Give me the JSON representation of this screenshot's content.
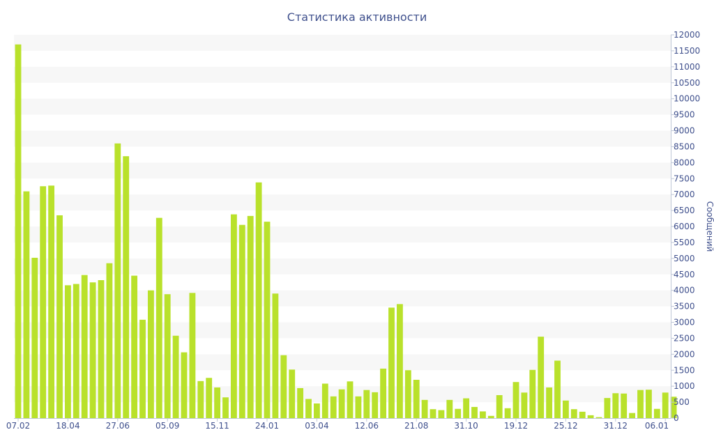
{
  "chart_data": {
    "type": "bar",
    "title": "Статистика активности",
    "ylabel": "Сообщений",
    "ylim": [
      0,
      12000
    ],
    "y_ticks": [
      0,
      500,
      1000,
      1500,
      2000,
      2500,
      3000,
      3500,
      4000,
      4500,
      5000,
      5500,
      6000,
      6500,
      7000,
      7500,
      8000,
      8500,
      9000,
      9500,
      10000,
      10500,
      11000,
      11500,
      12000
    ],
    "x_tick_labels": [
      {
        "label": "07.02",
        "index": 0
      },
      {
        "label": "18.04",
        "index": 6
      },
      {
        "label": "27.06",
        "index": 12
      },
      {
        "label": "05.09",
        "index": 18
      },
      {
        "label": "15.11",
        "index": 24
      },
      {
        "label": "24.01",
        "index": 30
      },
      {
        "label": "03.04",
        "index": 36
      },
      {
        "label": "12.06",
        "index": 42
      },
      {
        "label": "21.08",
        "index": 48
      },
      {
        "label": "31.10",
        "index": 54
      },
      {
        "label": "19.12",
        "index": 60
      },
      {
        "label": "25.12",
        "index": 66
      },
      {
        "label": "31.12",
        "index": 72
      },
      {
        "label": "06.01",
        "index": 78
      }
    ],
    "values": [
      11700,
      7100,
      5020,
      7260,
      7280,
      6350,
      4160,
      4200,
      4480,
      4250,
      4320,
      4850,
      8600,
      8200,
      4460,
      3080,
      4000,
      6270,
      3880,
      2580,
      2060,
      3920,
      1160,
      1260,
      960,
      650,
      6380,
      6050,
      6330,
      7380,
      6150,
      3900,
      1970,
      1520,
      940,
      600,
      460,
      1080,
      680,
      900,
      1150,
      680,
      880,
      810,
      1550,
      3460,
      3570,
      1500,
      1200,
      570,
      280,
      250,
      570,
      290,
      620,
      350,
      210,
      70,
      720,
      310,
      1130,
      800,
      1510,
      2550,
      960,
      1800,
      550,
      280,
      200,
      90,
      30,
      630,
      780,
      770,
      160,
      880,
      890,
      290,
      800,
      670
    ],
    "grid": "alternating horizontal bands",
    "bar_color": "#b9e12b",
    "band_color": "#f7f7f7",
    "text_color": "#3e4f8c",
    "y_axis_side": "right"
  }
}
